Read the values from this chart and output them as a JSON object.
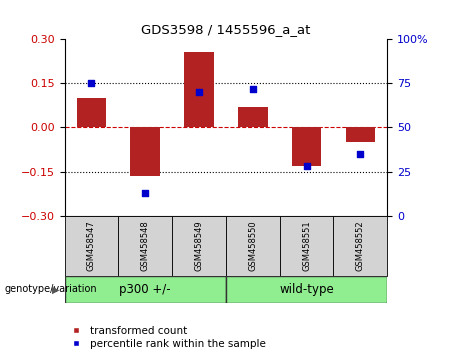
{
  "title": "GDS3598 / 1455596_a_at",
  "samples": [
    "GSM458547",
    "GSM458548",
    "GSM458549",
    "GSM458550",
    "GSM458551",
    "GSM458552"
  ],
  "red_bars": [
    0.1,
    -0.163,
    0.255,
    0.07,
    -0.13,
    -0.05
  ],
  "blue_dots_pct": [
    75,
    13,
    70,
    72,
    28,
    35
  ],
  "ylim_left": [
    -0.3,
    0.3
  ],
  "ylim_right": [
    0,
    100
  ],
  "yticks_left": [
    -0.3,
    -0.15,
    0,
    0.15,
    0.3
  ],
  "yticks_right": [
    0,
    25,
    50,
    75,
    100
  ],
  "hlines": [
    0.15,
    0,
    -0.15
  ],
  "group1_label": "p300 +/-",
  "group2_label": "wild-type",
  "group1_indices": [
    0,
    1,
    2
  ],
  "group2_indices": [
    3,
    4,
    5
  ],
  "genotype_label": "genotype/variation",
  "legend_red": "transformed count",
  "legend_blue": "percentile rank within the sample",
  "bar_color": "#b22222",
  "dot_color": "#0000cd",
  "group_color": "#90ee90",
  "label_box_color": "#d3d3d3",
  "bar_width": 0.55,
  "bg_color": "#ffffff",
  "plot_bg": "#ffffff",
  "tick_color_left": "#cc0000",
  "tick_color_right": "#0000cc",
  "right_tick_labels": [
    "0",
    "25",
    "50",
    "75",
    "100%"
  ]
}
